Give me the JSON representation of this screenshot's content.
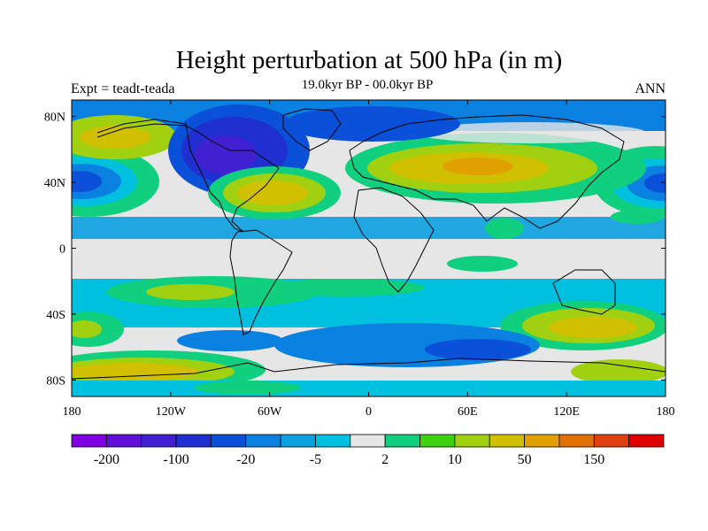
{
  "header": {
    "title": "Height perturbation at 500 hPa (in m)",
    "subtitle": "19.0kyr BP - 00.0kyr BP",
    "left_label": "Expt = teadt-teada",
    "right_label": "ANN"
  },
  "map": {
    "projection": "cylindrical equidistant",
    "lat_ticks": [
      "80N",
      "40N",
      "0",
      "40S",
      "80S"
    ],
    "lon_ticks": [
      "180",
      "120W",
      "60W",
      "0",
      "60E",
      "120E",
      "180"
    ]
  },
  "colorbar": {
    "colors": [
      "#7f00e0",
      "#6010d8",
      "#4020d0",
      "#2030d0",
      "#0a50d8",
      "#0a80e0",
      "#0aa0e0",
      "#00c0e0",
      "#e6e6e6",
      "#10d080",
      "#40d010",
      "#a0d010",
      "#d0c000",
      "#e0a000",
      "#e07000",
      "#e04010",
      "#e00000"
    ],
    "tick_labels": [
      "-200",
      "-100",
      "-20",
      "-5",
      "2",
      "10",
      "50",
      "150"
    ]
  },
  "chart_data": {
    "type": "map",
    "title": "Height perturbation at 500 hPa (in m)",
    "subtitle": "19.0kyr BP - 00.0kyr BP",
    "experiment": "Expt = teadt-teada",
    "season": "ANN",
    "x_range": [
      -180,
      180
    ],
    "y_range": [
      -90,
      90
    ],
    "x_ticks": [
      -180,
      -120,
      -60,
      0,
      60,
      120,
      180
    ],
    "y_ticks": [
      80,
      40,
      0,
      -40,
      -80
    ],
    "levels": [
      "-200",
      "-100",
      "-20",
      "-5",
      "2",
      "10",
      "50",
      "150"
    ],
    "features": [
      {
        "name": "negative anomaly over North America",
        "lon": -85,
        "lat": 60,
        "level": "-100"
      },
      {
        "name": "positive anomaly over North Atlantic",
        "lon": -45,
        "lat": 38,
        "level": "50"
      },
      {
        "name": "positive anomaly over Eurasia",
        "lon": 60,
        "lat": 45,
        "level": "50"
      },
      {
        "name": "negative anomaly North Pacific east",
        "lon": -165,
        "lat": 40,
        "level": "-20"
      },
      {
        "name": "negative anomaly North Pacific west",
        "lon": 175,
        "lat": 40,
        "level": "-20"
      },
      {
        "name": "positive anomaly South Pacific",
        "lon": 140,
        "lat": -45,
        "level": "50"
      },
      {
        "name": "positive anomaly near Antarctica",
        "lon": -140,
        "lat": -70,
        "level": "50"
      }
    ]
  }
}
